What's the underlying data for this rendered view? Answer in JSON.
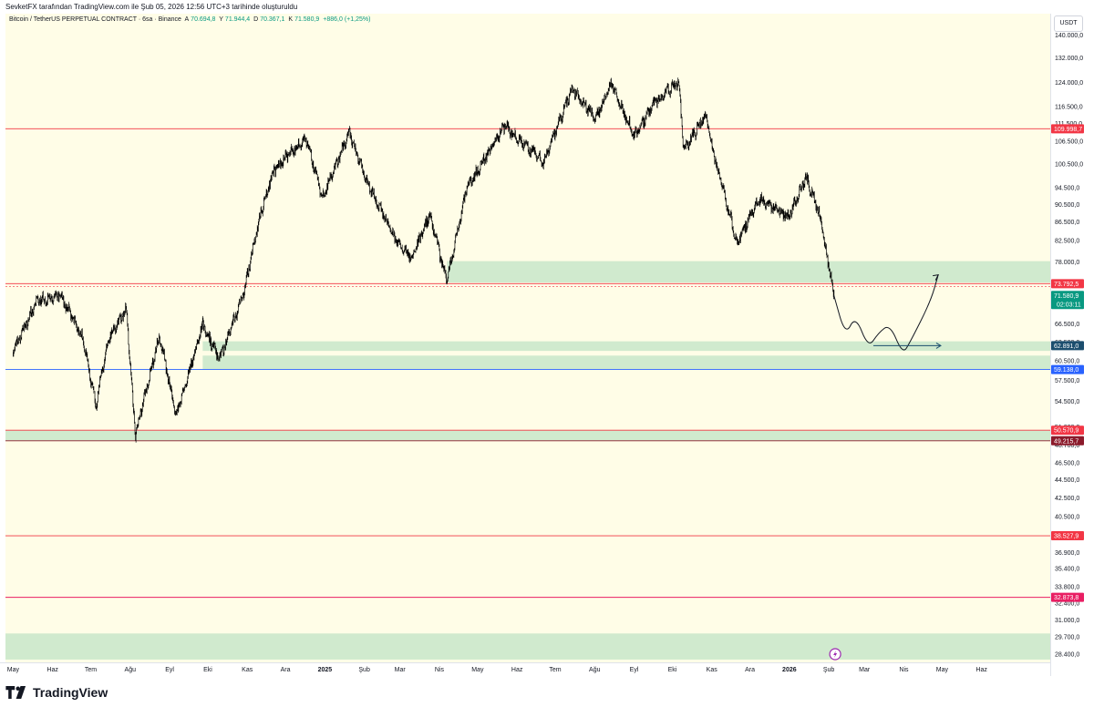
{
  "header": {
    "credit": "SevketFX tarafından TradingView.com ile Şub 05, 2026 12:56 UTC+3 tarihinde oluşturuldu"
  },
  "legend": {
    "symbol": "Bitcoin / TetherUS PERPETUAL CONTRACT · 6sa · Binance",
    "open_label": "A",
    "open": "70.694,8",
    "high_label": "Y",
    "high": "71.944,4",
    "low_label": "D",
    "low": "70.367,1",
    "close_label": "K",
    "close": "71.580,9",
    "change": "+886,0 (+1,25%)"
  },
  "currency_unit": "USDT",
  "brand": "TradingView",
  "colors": {
    "background": "#fffde7",
    "zone": "#c8e6c9",
    "candle": "#000000",
    "red_line": "#f23645",
    "blue_line": "#2962ff"
  },
  "chart_data": {
    "type": "line",
    "symbol": "BTCUSDT.P",
    "timeframe": "6sa",
    "x_ticks": [
      "May",
      "Haz",
      "Tem",
      "Ağu",
      "Eyl",
      "Eki",
      "Kas",
      "Ara",
      "2025",
      "Şub",
      "Mar",
      "Nis",
      "May",
      "Haz",
      "Tem",
      "Ağu",
      "Eyl",
      "Eki",
      "Kas",
      "Ara",
      "2026",
      "Şub",
      "Mar",
      "Nis",
      "May",
      "Haz"
    ],
    "y_ticks": [
      "28.400,0",
      "29.700,0",
      "31.000,0",
      "32.400,0",
      "33.800,0",
      "35.400,0",
      "36.900,0",
      "38.600,0",
      "40.500,0",
      "42.500,0",
      "44.500,0",
      "46.500,0",
      "48.700,0",
      "51.000,0",
      "54.500,0",
      "57.500,0",
      "60.500,0",
      "63.500,0",
      "66.500,0",
      "70.000,0",
      "74.000,0",
      "78.000,0",
      "82.500,0",
      "86.500,0",
      "90.500,0",
      "94.500,0",
      "100.500,0",
      "106.500,0",
      "111.500,0",
      "116.500,0",
      "124.000,0",
      "132.000,0",
      "140.000,0"
    ],
    "y_scale": "log",
    "ylim": [
      27800,
      148000
    ],
    "price_path": {
      "x": [
        "2024-05-01",
        "2024-05-20",
        "2024-06-07",
        "2024-06-25",
        "2024-07-05",
        "2024-07-15",
        "2024-07-29",
        "2024-08-05",
        "2024-08-24",
        "2024-09-06",
        "2024-09-27",
        "2024-10-10",
        "2024-10-29",
        "2024-11-12",
        "2024-11-22",
        "2024-12-05",
        "2024-12-17",
        "2024-12-30",
        "2025-01-20",
        "2025-02-03",
        "2025-02-25",
        "2025-03-10",
        "2025-03-24",
        "2025-04-07",
        "2025-04-22",
        "2025-05-22",
        "2025-06-22",
        "2025-07-14",
        "2025-08-02",
        "2025-08-14",
        "2025-09-01",
        "2025-09-17",
        "2025-10-06",
        "2025-10-10",
        "2025-10-27",
        "2025-11-04",
        "2025-11-21",
        "2025-12-08",
        "2025-12-31",
        "2026-01-14",
        "2026-01-25",
        "2026-02-05"
      ],
      "y": [
        62000,
        70500,
        71800,
        64000,
        54000,
        64000,
        69000,
        50000,
        64500,
        52500,
        66500,
        60500,
        72000,
        89000,
        99000,
        103500,
        107500,
        92000,
        109000,
        96000,
        83000,
        79000,
        88000,
        74500,
        94000,
        111000,
        101000,
        122000,
        113000,
        124000,
        108000,
        117500,
        124500,
        104000,
        114000,
        101000,
        82000,
        92000,
        87500,
        97000,
        88000,
        71580.9
      ]
    },
    "projection": {
      "x": [
        "2026-02-05",
        "2026-02-14",
        "2026-02-22",
        "2026-03-04",
        "2026-03-12",
        "2026-03-21",
        "2026-03-31",
        "2026-04-06",
        "2026-04-22",
        "2026-04-28"
      ],
      "y": [
        71580.9,
        64500,
        68000,
        62500,
        65000,
        66500,
        61500,
        63500,
        70500,
        75500
      ]
    },
    "projection_arrow": {
      "x": [
        "2026-03-08",
        "2026-04-30"
      ],
      "y": [
        62891.0,
        62891.0
      ]
    },
    "zones": [
      {
        "x_start": "2025-04-07",
        "y_low": 74000,
        "y_high": 78200
      },
      {
        "x_start": "2024-09-27",
        "y_low": 62050,
        "y_high": 63600
      },
      {
        "x_start": "2024-09-27",
        "y_low": 59200,
        "y_high": 61300
      },
      {
        "x_start": "2024-04-25",
        "y_low": 49215.7,
        "y_high": 50570.9
      },
      {
        "x_start": "2024-04-25",
        "y_low": 28000,
        "y_high": 29950
      }
    ],
    "levels": [
      {
        "value": 109998.7,
        "label": "109.998,7",
        "color": "#f23645"
      },
      {
        "value": 73792.5,
        "label": "73.792,5",
        "color": "#f23645"
      },
      {
        "value": 59138.0,
        "label": "59.138,0",
        "color": "#2962ff"
      },
      {
        "value": 50570.9,
        "label": "50.570,9",
        "color": "#f23645"
      },
      {
        "value": 49215.7,
        "label": "49.215,7",
        "color": "#8b1a2b"
      },
      {
        "value": 38527.9,
        "label": "38.527,9",
        "color": "#f23645"
      },
      {
        "value": 32873.8,
        "label": "32.873,8",
        "color": "#e91e63"
      }
    ],
    "price_badges": [
      {
        "value": 71580.9,
        "label": "71.580,9",
        "sub": "02:03:11",
        "color": "#089981"
      },
      {
        "value": 62891.0,
        "label": "62.891,0",
        "color": "#1c4e6e"
      }
    ]
  }
}
